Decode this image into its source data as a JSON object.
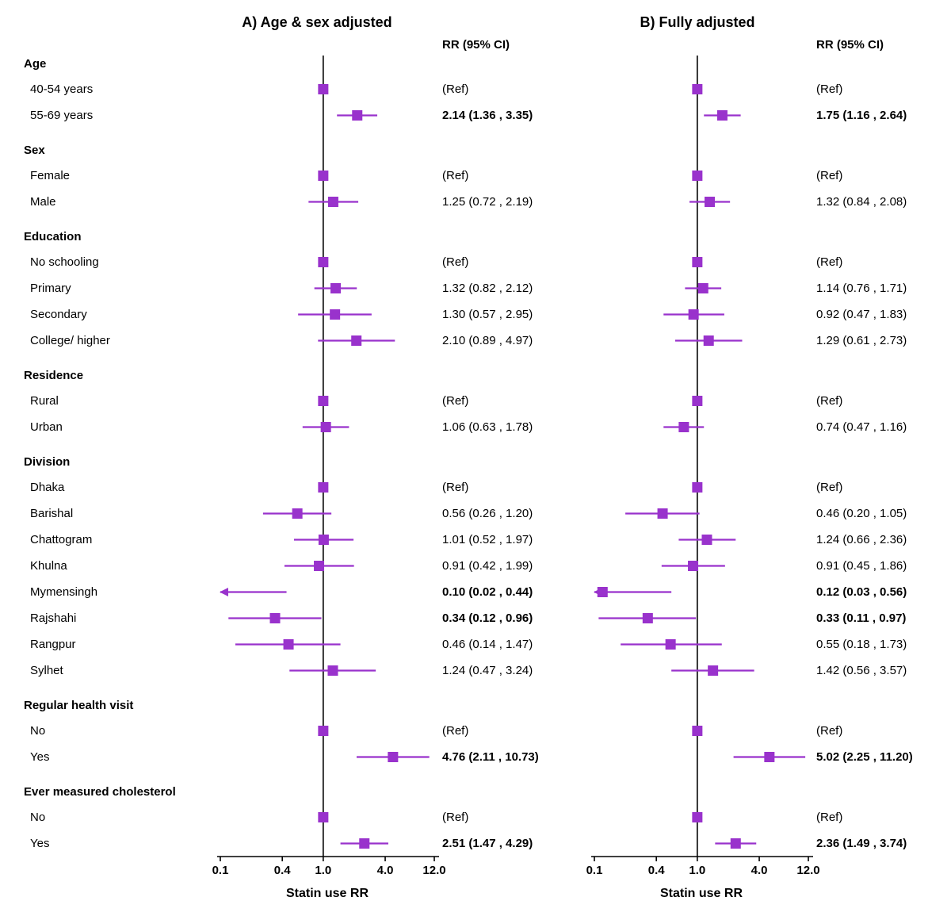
{
  "figure": {
    "panel_a_title": "A) Age & sex adjusted",
    "panel_b_title": "B) Fully adjusted",
    "col_header": "RR (95% CI)",
    "xlabel": "Statin use RR"
  },
  "colors": {
    "marker": "#9932CC",
    "axis": "#000000",
    "text": "#000000"
  },
  "chart_data": {
    "type": "forest",
    "scale": "log",
    "x_range": [
      0.1,
      12.0
    ],
    "x_ticks": [
      0.1,
      0.4,
      1.0,
      4.0,
      12.0
    ],
    "x_tick_labels": [
      "0.1",
      "0.4",
      "1.0",
      "4.0",
      "12.0"
    ],
    "refline": 1.0,
    "panels": [
      "A) Age & sex adjusted",
      "B) Fully adjusted"
    ],
    "rows": [
      {
        "kind": "group",
        "label": "Age"
      },
      {
        "kind": "item",
        "label": "40-54 years",
        "a": {
          "ref": true,
          "text": "(Ref)"
        },
        "b": {
          "ref": true,
          "text": "(Ref)"
        }
      },
      {
        "kind": "item",
        "label": "55-69 years",
        "a": {
          "rr": 2.14,
          "lo": 1.36,
          "hi": 3.35,
          "text": "2.14 (1.36 , 3.35)",
          "bold": true
        },
        "b": {
          "rr": 1.75,
          "lo": 1.16,
          "hi": 2.64,
          "text": "1.75 (1.16 , 2.64)",
          "bold": true
        }
      },
      {
        "kind": "gap"
      },
      {
        "kind": "group",
        "label": "Sex"
      },
      {
        "kind": "item",
        "label": "Female",
        "a": {
          "ref": true,
          "text": "(Ref)"
        },
        "b": {
          "ref": true,
          "text": "(Ref)"
        }
      },
      {
        "kind": "item",
        "label": "Male",
        "a": {
          "rr": 1.25,
          "lo": 0.72,
          "hi": 2.19,
          "text": "1.25 (0.72 , 2.19)",
          "bold": false
        },
        "b": {
          "rr": 1.32,
          "lo": 0.84,
          "hi": 2.08,
          "text": "1.32 (0.84 , 2.08)",
          "bold": false
        }
      },
      {
        "kind": "gap"
      },
      {
        "kind": "group",
        "label": "Education"
      },
      {
        "kind": "item",
        "label": "No schooling",
        "a": {
          "ref": true,
          "text": "(Ref)"
        },
        "b": {
          "ref": true,
          "text": "(Ref)"
        }
      },
      {
        "kind": "item",
        "label": "Primary",
        "a": {
          "rr": 1.32,
          "lo": 0.82,
          "hi": 2.12,
          "text": "1.32 (0.82 , 2.12)",
          "bold": false
        },
        "b": {
          "rr": 1.14,
          "lo": 0.76,
          "hi": 1.71,
          "text": "1.14 (0.76 , 1.71)",
          "bold": false
        }
      },
      {
        "kind": "item",
        "label": "Secondary",
        "a": {
          "rr": 1.3,
          "lo": 0.57,
          "hi": 2.95,
          "text": "1.30 (0.57 , 2.95)",
          "bold": false
        },
        "b": {
          "rr": 0.92,
          "lo": 0.47,
          "hi": 1.83,
          "text": "0.92 (0.47 , 1.83)",
          "bold": false
        }
      },
      {
        "kind": "item",
        "label": "College/ higher",
        "a": {
          "rr": 2.1,
          "lo": 0.89,
          "hi": 4.97,
          "text": "2.10 (0.89 , 4.97)",
          "bold": false
        },
        "b": {
          "rr": 1.29,
          "lo": 0.61,
          "hi": 2.73,
          "text": "1.29 (0.61 , 2.73)",
          "bold": false
        }
      },
      {
        "kind": "gap"
      },
      {
        "kind": "group",
        "label": "Residence"
      },
      {
        "kind": "item",
        "label": "Rural",
        "a": {
          "ref": true,
          "text": "(Ref)"
        },
        "b": {
          "ref": true,
          "text": "(Ref)"
        }
      },
      {
        "kind": "item",
        "label": "Urban",
        "a": {
          "rr": 1.06,
          "lo": 0.63,
          "hi": 1.78,
          "text": "1.06 (0.63 , 1.78)",
          "bold": false
        },
        "b": {
          "rr": 0.74,
          "lo": 0.47,
          "hi": 1.16,
          "text": "0.74 (0.47 , 1.16)",
          "bold": false
        }
      },
      {
        "kind": "gap"
      },
      {
        "kind": "group",
        "label": "Division"
      },
      {
        "kind": "item",
        "label": "Dhaka",
        "a": {
          "ref": true,
          "text": "(Ref)"
        },
        "b": {
          "ref": true,
          "text": "(Ref)"
        }
      },
      {
        "kind": "item",
        "label": "Barishal",
        "a": {
          "rr": 0.56,
          "lo": 0.26,
          "hi": 1.2,
          "text": "0.56 (0.26 , 1.20)",
          "bold": false
        },
        "b": {
          "rr": 0.46,
          "lo": 0.2,
          "hi": 1.05,
          "text": "0.46 (0.20 , 1.05)",
          "bold": false
        }
      },
      {
        "kind": "item",
        "label": "Chattogram",
        "a": {
          "rr": 1.01,
          "lo": 0.52,
          "hi": 1.97,
          "text": "1.01 (0.52 , 1.97)",
          "bold": false
        },
        "b": {
          "rr": 1.24,
          "lo": 0.66,
          "hi": 2.36,
          "text": "1.24 (0.66 , 2.36)",
          "bold": false
        }
      },
      {
        "kind": "item",
        "label": "Khulna",
        "a": {
          "rr": 0.91,
          "lo": 0.42,
          "hi": 1.99,
          "text": "0.91 (0.42 , 1.99)",
          "bold": false
        },
        "b": {
          "rr": 0.91,
          "lo": 0.45,
          "hi": 1.86,
          "text": "0.91 (0.45 , 1.86)",
          "bold": false
        }
      },
      {
        "kind": "item",
        "label": "Mymensingh",
        "a": {
          "rr": 0.1,
          "lo": 0.02,
          "hi": 0.44,
          "text": "0.10 (0.02 , 0.44)",
          "bold": true
        },
        "b": {
          "rr": 0.12,
          "lo": 0.03,
          "hi": 0.56,
          "text": "0.12 (0.03 , 0.56)",
          "bold": true
        }
      },
      {
        "kind": "item",
        "label": "Rajshahi",
        "a": {
          "rr": 0.34,
          "lo": 0.12,
          "hi": 0.96,
          "text": "0.34 (0.12 , 0.96)",
          "bold": true
        },
        "b": {
          "rr": 0.33,
          "lo": 0.11,
          "hi": 0.97,
          "text": "0.33 (0.11 , 0.97)",
          "bold": true
        }
      },
      {
        "kind": "item",
        "label": "Rangpur",
        "a": {
          "rr": 0.46,
          "lo": 0.14,
          "hi": 1.47,
          "text": "0.46 (0.14 , 1.47)",
          "bold": false
        },
        "b": {
          "rr": 0.55,
          "lo": 0.18,
          "hi": 1.73,
          "text": "0.55 (0.18 , 1.73)",
          "bold": false
        }
      },
      {
        "kind": "item",
        "label": "Sylhet",
        "a": {
          "rr": 1.24,
          "lo": 0.47,
          "hi": 3.24,
          "text": "1.24 (0.47 , 3.24)",
          "bold": false
        },
        "b": {
          "rr": 1.42,
          "lo": 0.56,
          "hi": 3.57,
          "text": "1.42 (0.56 , 3.57)",
          "bold": false
        }
      },
      {
        "kind": "gap"
      },
      {
        "kind": "group",
        "label": "Regular health visit"
      },
      {
        "kind": "item",
        "label": "No",
        "a": {
          "ref": true,
          "text": "(Ref)"
        },
        "b": {
          "ref": true,
          "text": "(Ref)"
        }
      },
      {
        "kind": "item",
        "label": "Yes",
        "a": {
          "rr": 4.76,
          "lo": 2.11,
          "hi": 10.73,
          "text": "4.76 (2.11 , 10.73)",
          "bold": true
        },
        "b": {
          "rr": 5.02,
          "lo": 2.25,
          "hi": 11.2,
          "text": "5.02 (2.25 , 11.20)",
          "bold": true
        }
      },
      {
        "kind": "gap"
      },
      {
        "kind": "group",
        "label": "Ever measured cholesterol"
      },
      {
        "kind": "item",
        "label": "No",
        "a": {
          "ref": true,
          "text": "(Ref)"
        },
        "b": {
          "ref": true,
          "text": "(Ref)"
        }
      },
      {
        "kind": "item",
        "label": "Yes",
        "a": {
          "rr": 2.51,
          "lo": 1.47,
          "hi": 4.29,
          "text": "2.51 (1.47 , 4.29)",
          "bold": true
        },
        "b": {
          "rr": 2.36,
          "lo": 1.49,
          "hi": 3.74,
          "text": "2.36 (1.49 , 3.74)",
          "bold": true
        }
      }
    ]
  }
}
